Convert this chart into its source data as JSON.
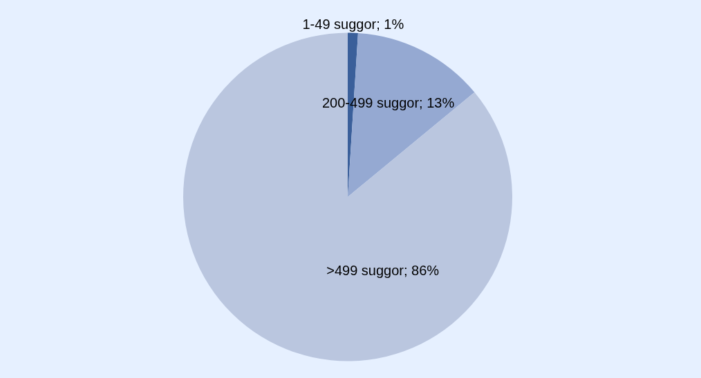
{
  "chart_data": {
    "type": "pie",
    "categories": [
      "1-49 suggor",
      "200-499 suggor",
      ">499 suggor"
    ],
    "values": [
      1,
      13,
      86
    ],
    "colors": [
      "#3a5f9a",
      "#95a9d2",
      "#bac6df"
    ],
    "value_labels": [
      "1%",
      "13%",
      "86%"
    ],
    "legend": false
  }
}
